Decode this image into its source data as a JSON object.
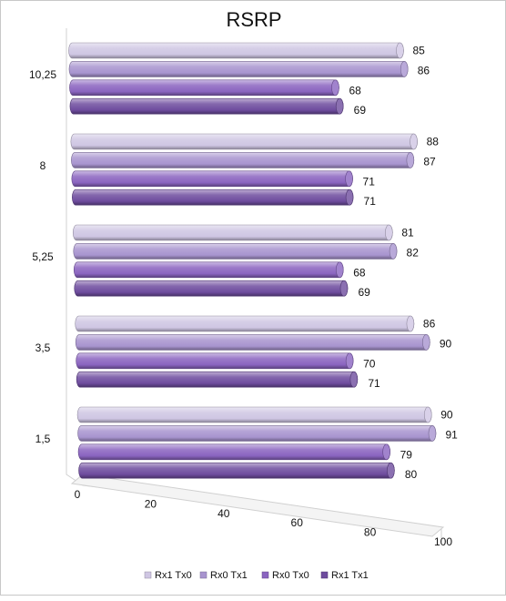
{
  "chart_data": {
    "type": "bar",
    "orientation": "horizontal",
    "style": "3d-cylinder",
    "title": "RSRP",
    "xlabel": "",
    "ylabel": "",
    "xlim": [
      0,
      100
    ],
    "x_ticks": [
      "0",
      "20",
      "40",
      "60",
      "80",
      "100"
    ],
    "categories": [
      "10,25",
      "8",
      "5,25",
      "3,5",
      "1,5"
    ],
    "series": [
      {
        "name": "Rx1 Tx0",
        "color": "#cfc6e3",
        "values": [
          85,
          88,
          81,
          86,
          90
        ]
      },
      {
        "name": "Rx0 Tx1",
        "color": "#a894cf",
        "values": [
          86,
          87,
          82,
          90,
          91
        ]
      },
      {
        "name": "Rx0 Tx0",
        "color": "#8a64c0",
        "values": [
          68,
          71,
          68,
          70,
          79
        ]
      },
      {
        "name": "Rx1 Tx1",
        "color": "#6e4c9e",
        "values": [
          69,
          71,
          69,
          71,
          80
        ]
      }
    ],
    "legend": {
      "position": "bottom"
    },
    "grid": false
  }
}
